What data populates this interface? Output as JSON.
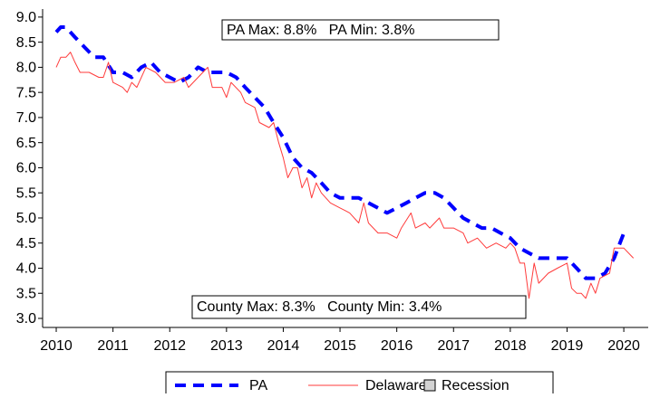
{
  "chart_data": {
    "type": "line",
    "annotations": [
      "PA Max: 8.8%   PA Min: 3.8%",
      "County Max: 8.3%   County Min: 3.4%"
    ],
    "xlim": [
      2009.76,
      2020.43
    ],
    "xticks": [
      2010,
      2011,
      2012,
      2013,
      2014,
      2015,
      2016,
      2017,
      2018,
      2019,
      2020
    ],
    "ylim": [
      2.82,
      9.16
    ],
    "yticks": [
      {
        "value": 3,
        "label": "3.0"
      },
      3.5,
      {
        "value": 4,
        "label": "4.0"
      },
      4.5,
      {
        "value": 5,
        "label": "5.0"
      },
      5.5,
      {
        "value": 6,
        "label": "6.0"
      },
      6.5,
      {
        "value": 7,
        "label": "7.0"
      },
      7.5,
      {
        "value": 8,
        "label": "8.0"
      },
      8.5,
      {
        "value": 9,
        "label": "9.0"
      }
    ],
    "series": [
      {
        "name": "PA",
        "color": "#0000ff",
        "style": "dashed",
        "x": [
          2010.0,
          2010.08,
          2010.17,
          2010.33,
          2010.5,
          2010.67,
          2010.83,
          2011.0,
          2011.17,
          2011.33,
          2011.5,
          2011.67,
          2011.83,
          2012.0,
          2012.17,
          2012.33,
          2012.5,
          2012.67,
          2012.83,
          2013.0,
          2013.17,
          2013.33,
          2013.5,
          2013.67,
          2013.83,
          2014.0,
          2014.17,
          2014.33,
          2014.5,
          2014.67,
          2014.83,
          2015.0,
          2015.17,
          2015.33,
          2015.5,
          2015.67,
          2015.83,
          2016.0,
          2016.17,
          2016.33,
          2016.5,
          2016.67,
          2016.83,
          2017.0,
          2017.17,
          2017.33,
          2017.5,
          2017.67,
          2017.83,
          2018.0,
          2018.17,
          2018.33,
          2018.5,
          2018.67,
          2018.83,
          2019.0,
          2019.17,
          2019.33,
          2019.5,
          2019.67,
          2019.83,
          2020.0,
          2020.08
        ],
        "values": [
          8.7,
          8.8,
          8.8,
          8.6,
          8.4,
          8.2,
          8.2,
          7.9,
          7.9,
          7.8,
          8.0,
          8.1,
          7.9,
          7.8,
          7.7,
          7.8,
          8.0,
          7.9,
          7.9,
          7.9,
          7.8,
          7.6,
          7.4,
          7.2,
          6.9,
          6.6,
          6.2,
          6.0,
          5.9,
          5.7,
          5.5,
          5.4,
          5.4,
          5.4,
          5.3,
          5.2,
          5.1,
          5.2,
          5.3,
          5.4,
          5.5,
          5.5,
          5.4,
          5.2,
          5.0,
          4.9,
          4.8,
          4.8,
          4.7,
          4.6,
          4.4,
          4.3,
          4.2,
          4.2,
          4.2,
          4.2,
          4.0,
          3.8,
          3.8,
          3.9,
          4.2,
          4.7,
          4.7
        ]
      },
      {
        "name": "Delaware",
        "color": "#ff3b3b",
        "style": "solid",
        "x": [
          2010.0,
          2010.08,
          2010.17,
          2010.25,
          2010.33,
          2010.42,
          2010.58,
          2010.75,
          2010.83,
          2010.92,
          2011.0,
          2011.17,
          2011.25,
          2011.33,
          2011.42,
          2011.58,
          2011.75,
          2011.92,
          2012.08,
          2012.25,
          2012.33,
          2012.5,
          2012.67,
          2012.75,
          2012.92,
          2013.0,
          2013.08,
          2013.25,
          2013.33,
          2013.5,
          2013.58,
          2013.75,
          2013.83,
          2013.92,
          2014.0,
          2014.08,
          2014.17,
          2014.25,
          2014.33,
          2014.42,
          2014.5,
          2014.58,
          2014.67,
          2014.83,
          2015.0,
          2015.17,
          2015.33,
          2015.42,
          2015.5,
          2015.67,
          2015.83,
          2016.0,
          2016.08,
          2016.25,
          2016.33,
          2016.5,
          2016.58,
          2016.75,
          2016.83,
          2017.0,
          2017.17,
          2017.25,
          2017.42,
          2017.58,
          2017.75,
          2017.92,
          2018.0,
          2018.08,
          2018.17,
          2018.25,
          2018.33,
          2018.42,
          2018.5,
          2018.67,
          2018.83,
          2019.0,
          2019.08,
          2019.17,
          2019.25,
          2019.33,
          2019.42,
          2019.5,
          2019.58,
          2019.75,
          2019.83,
          2019.92,
          2020.0,
          2020.17
        ],
        "values": [
          8.0,
          8.2,
          8.2,
          8.3,
          8.1,
          7.9,
          7.9,
          7.8,
          7.8,
          8.1,
          7.7,
          7.6,
          7.5,
          7.7,
          7.6,
          8.0,
          7.9,
          7.7,
          7.7,
          7.8,
          7.6,
          7.8,
          8.0,
          7.6,
          7.6,
          7.4,
          7.7,
          7.5,
          7.3,
          7.2,
          6.9,
          6.8,
          6.9,
          6.5,
          6.2,
          5.8,
          6.0,
          6.0,
          5.6,
          5.8,
          5.4,
          5.7,
          5.5,
          5.3,
          5.2,
          5.1,
          4.9,
          5.3,
          4.9,
          4.7,
          4.7,
          4.6,
          4.8,
          5.1,
          4.8,
          4.9,
          4.8,
          5.0,
          4.8,
          4.8,
          4.7,
          4.5,
          4.6,
          4.4,
          4.5,
          4.4,
          4.5,
          4.4,
          4.1,
          4.1,
          3.4,
          4.1,
          3.7,
          3.9,
          4.0,
          4.1,
          3.6,
          3.5,
          3.5,
          3.4,
          3.7,
          3.5,
          3.8,
          3.9,
          4.4,
          4.4,
          4.4,
          4.2
        ]
      },
      {
        "name": "Recession",
        "color": "#d3d3d3",
        "style": "area",
        "x": [],
        "values": []
      }
    ]
  }
}
